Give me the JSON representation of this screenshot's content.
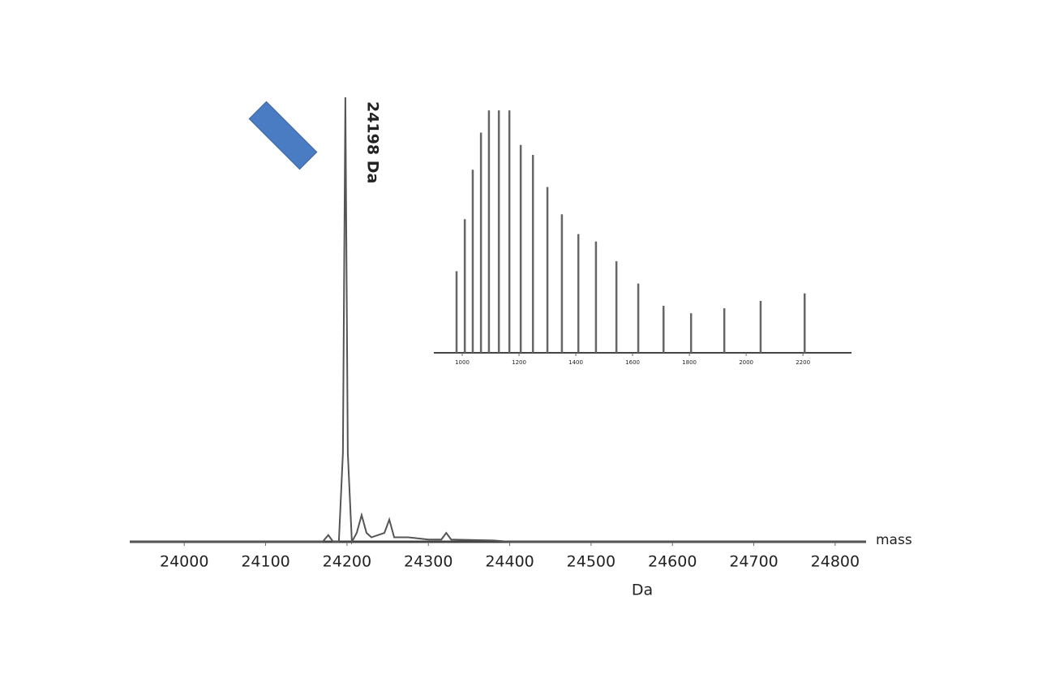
{
  "chart_data": [
    {
      "type": "line",
      "annotation": "24198 Da",
      "xlabel": "Da",
      "axis_title": "mass",
      "color": "#555555",
      "x": [
        23933,
        24170,
        24177,
        24183,
        24190,
        24195,
        24198,
        24201,
        24206,
        24212,
        24218,
        24224,
        24230,
        24246,
        24252,
        24258,
        24275,
        24300,
        24316,
        24322,
        24328,
        24380,
        24400,
        24838
      ],
      "values": [
        0,
        0,
        1.5,
        0,
        0,
        20,
        100,
        20,
        0,
        2,
        6,
        2,
        1,
        2,
        5,
        1,
        1,
        0.5,
        0.5,
        2,
        0.5,
        0.3,
        0,
        0
      ],
      "xlim": [
        23933,
        24838
      ],
      "ylim": [
        0,
        100
      ],
      "xticks": [
        24000,
        24100,
        24200,
        24300,
        24400,
        24500,
        24600,
        24700,
        24800
      ]
    },
    {
      "type": "stick",
      "color": "#666666",
      "x": [
        980,
        1009,
        1037,
        1066,
        1094,
        1129,
        1166,
        1206,
        1249,
        1300,
        1351,
        1409,
        1471,
        1543,
        1620,
        1709,
        1806,
        1923,
        2051,
        2206
      ],
      "values": [
        33,
        54,
        74,
        89,
        98,
        98,
        98,
        84,
        80,
        67,
        56,
        48,
        45,
        37,
        28,
        19,
        16,
        18,
        21,
        24
      ],
      "xlim": [
        900,
        2371
      ],
      "ylim": [
        0,
        100
      ],
      "xticks": [
        1000,
        1200,
        1400,
        1600,
        1800,
        2000,
        2200
      ]
    }
  ]
}
